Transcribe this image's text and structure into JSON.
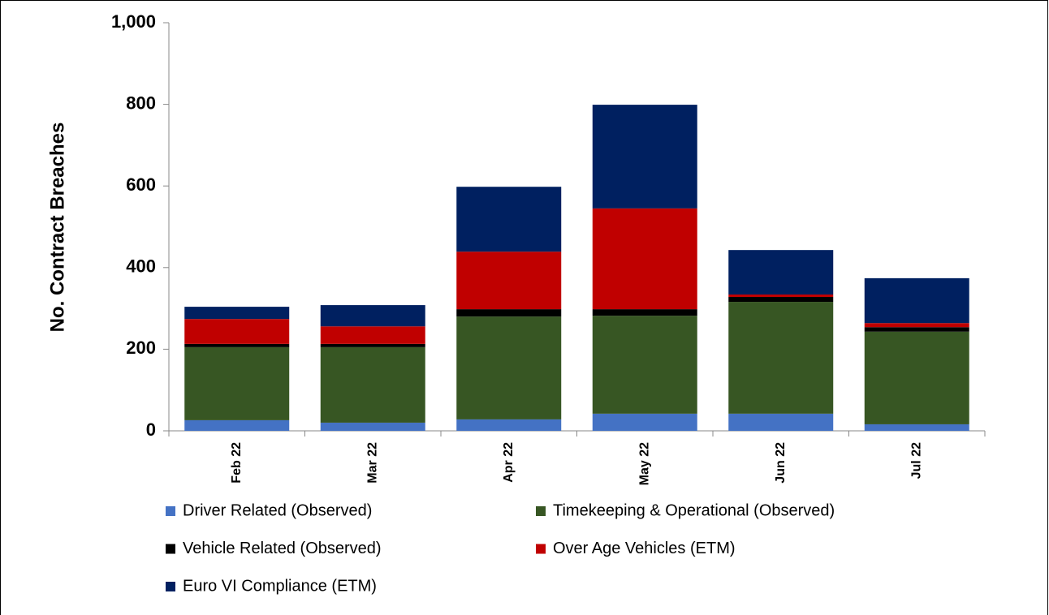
{
  "chart_data": {
    "type": "stacked_bar",
    "y_label": "No. Contract Breaches",
    "categories": [
      "Feb 22",
      "Mar 22",
      "Apr 22",
      "May 22",
      "Jun 22",
      "Jul 22"
    ],
    "series": [
      {
        "name": "Driver Related (Observed)",
        "color": "#4472c4",
        "values": [
          26,
          20,
          28,
          42,
          42,
          16
        ]
      },
      {
        "name": "Timekeeping & Operational (Observed)",
        "color": "#375623",
        "values": [
          179,
          185,
          252,
          240,
          274,
          227
        ]
      },
      {
        "name": "Vehicle Related (Observed)",
        "color": "#000000",
        "values": [
          8,
          8,
          18,
          16,
          12,
          11
        ]
      },
      {
        "name": "Over Age Vehicles (ETM)",
        "color": "#c00000",
        "values": [
          61,
          43,
          141,
          247,
          6,
          10
        ]
      },
      {
        "name": "Euro VI Compliance (ETM)",
        "color": "#002060",
        "values": [
          30,
          52,
          159,
          254,
          109,
          110
        ]
      }
    ],
    "ylim": [
      0,
      1000
    ],
    "yticks": [
      0,
      200,
      400,
      600,
      800,
      {
        "value": 1000,
        "label": "1,000"
      }
    ],
    "legend": "bottom"
  }
}
